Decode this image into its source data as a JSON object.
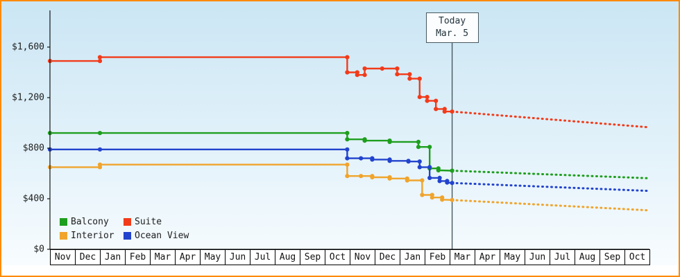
{
  "colors": {
    "frame_border": "#ff8a00",
    "background_top": "#cbe6f4",
    "background_bottom": "#fafdff",
    "axis": "#141414",
    "today_line": "#47585f",
    "text": "#1d1d1d"
  },
  "chart_data": {
    "type": "line",
    "line_style": "stepped-with-markers-and-dotted-projection",
    "ylabel": "",
    "xlabel": "",
    "ylim": [
      0,
      1900
    ],
    "grid": false,
    "legend_position": "bottom-left",
    "y_axis": {
      "ticks": [
        {
          "value": 0,
          "label": "$0"
        },
        {
          "value": 400,
          "label": "$400"
        },
        {
          "value": 800,
          "label": "$800"
        },
        {
          "value": 1200,
          "label": "$1,200"
        },
        {
          "value": 1600,
          "label": "$1,600"
        }
      ]
    },
    "x_axis": {
      "months": [
        "Nov",
        "Dec",
        "Jan",
        "Feb",
        "Mar",
        "Apr",
        "May",
        "Jun",
        "Jul",
        "Aug",
        "Sep",
        "Oct",
        "Nov",
        "Dec",
        "Jan",
        "Feb",
        "Mar",
        "Apr",
        "May",
        "Jun",
        "Jul",
        "Aug",
        "Sep",
        "Oct"
      ]
    },
    "today": {
      "x": 16.1,
      "label_line1": "Today",
      "label_line2": "Mar. 5"
    },
    "series": [
      {
        "name": "Balcony",
        "color": "#1e9e1e",
        "solid": [
          [
            0,
            920
          ],
          [
            2,
            920
          ],
          [
            11.9,
            920
          ],
          [
            11.9,
            870
          ],
          [
            12.6,
            870
          ],
          [
            12.6,
            860
          ],
          [
            13.6,
            860
          ],
          [
            13.6,
            850
          ],
          [
            14.75,
            850
          ],
          [
            14.75,
            810
          ],
          [
            15.2,
            810
          ],
          [
            15.2,
            640
          ],
          [
            15.55,
            640
          ],
          [
            15.55,
            625
          ],
          [
            16.1,
            622
          ]
        ],
        "projection": [
          [
            16.1,
            622
          ],
          [
            24,
            562
          ]
        ]
      },
      {
        "name": "Suite",
        "color": "#f23b1a",
        "solid": [
          [
            0,
            1490
          ],
          [
            2,
            1490
          ],
          [
            2,
            1520
          ],
          [
            11.9,
            1520
          ],
          [
            11.9,
            1400
          ],
          [
            12.3,
            1400
          ],
          [
            12.3,
            1380
          ],
          [
            12.6,
            1380
          ],
          [
            12.6,
            1430
          ],
          [
            13.3,
            1430
          ],
          [
            13.9,
            1430
          ],
          [
            13.9,
            1385
          ],
          [
            14.4,
            1385
          ],
          [
            14.4,
            1350
          ],
          [
            14.8,
            1350
          ],
          [
            14.8,
            1205
          ],
          [
            15.1,
            1205
          ],
          [
            15.1,
            1175
          ],
          [
            15.45,
            1175
          ],
          [
            15.45,
            1110
          ],
          [
            15.8,
            1110
          ],
          [
            15.8,
            1090
          ],
          [
            16.1,
            1090
          ]
        ],
        "projection": [
          [
            16.1,
            1090
          ],
          [
            24,
            965
          ]
        ]
      },
      {
        "name": "Interior",
        "color": "#f0a42c",
        "solid": [
          [
            0,
            650
          ],
          [
            2,
            650
          ],
          [
            2,
            670
          ],
          [
            11.9,
            670
          ],
          [
            11.9,
            580
          ],
          [
            12.45,
            580
          ],
          [
            12.9,
            580
          ],
          [
            12.9,
            570
          ],
          [
            13.6,
            570
          ],
          [
            13.6,
            560
          ],
          [
            14.3,
            560
          ],
          [
            14.3,
            545
          ],
          [
            14.9,
            545
          ],
          [
            14.9,
            430
          ],
          [
            15.3,
            430
          ],
          [
            15.3,
            410
          ],
          [
            15.7,
            410
          ],
          [
            15.7,
            393
          ],
          [
            16.1,
            390
          ]
        ],
        "projection": [
          [
            16.1,
            390
          ],
          [
            24,
            308
          ]
        ]
      },
      {
        "name": "Ocean View",
        "color": "#2243cd",
        "solid": [
          [
            0,
            790
          ],
          [
            2,
            790
          ],
          [
            11.9,
            790
          ],
          [
            11.9,
            720
          ],
          [
            12.45,
            720
          ],
          [
            12.9,
            720
          ],
          [
            12.9,
            710
          ],
          [
            13.6,
            710
          ],
          [
            13.6,
            700
          ],
          [
            14.35,
            700
          ],
          [
            14.35,
            695
          ],
          [
            14.8,
            695
          ],
          [
            14.8,
            650
          ],
          [
            15.2,
            650
          ],
          [
            15.2,
            565
          ],
          [
            15.6,
            565
          ],
          [
            15.6,
            540
          ],
          [
            15.9,
            540
          ],
          [
            15.9,
            528
          ],
          [
            16.1,
            525
          ]
        ],
        "projection": [
          [
            16.1,
            525
          ],
          [
            24,
            462
          ]
        ]
      }
    ],
    "legend": [
      {
        "label": "Balcony",
        "color": "#1e9e1e"
      },
      {
        "label": "Suite",
        "color": "#f23b1a"
      },
      {
        "label": "Interior",
        "color": "#f0a42c"
      },
      {
        "label": "Ocean View",
        "color": "#2243cd"
      }
    ]
  }
}
